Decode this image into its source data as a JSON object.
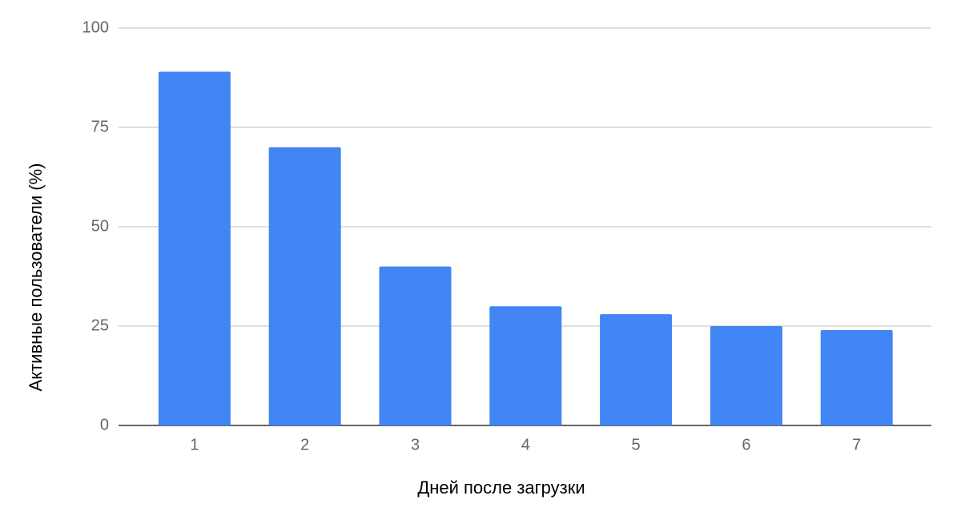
{
  "chart_data": {
    "type": "bar",
    "x_label": "Дней после загрузки",
    "y_label": "Активные пользователи (%)",
    "categories": [
      "1",
      "2",
      "3",
      "4",
      "5",
      "6",
      "7"
    ],
    "values": [
      89,
      70,
      40,
      30,
      28,
      25,
      24
    ],
    "color": "#4285f4",
    "ylim": [
      0,
      100
    ],
    "yticks": [
      0,
      25,
      50,
      75,
      100
    ],
    "grid": true
  }
}
